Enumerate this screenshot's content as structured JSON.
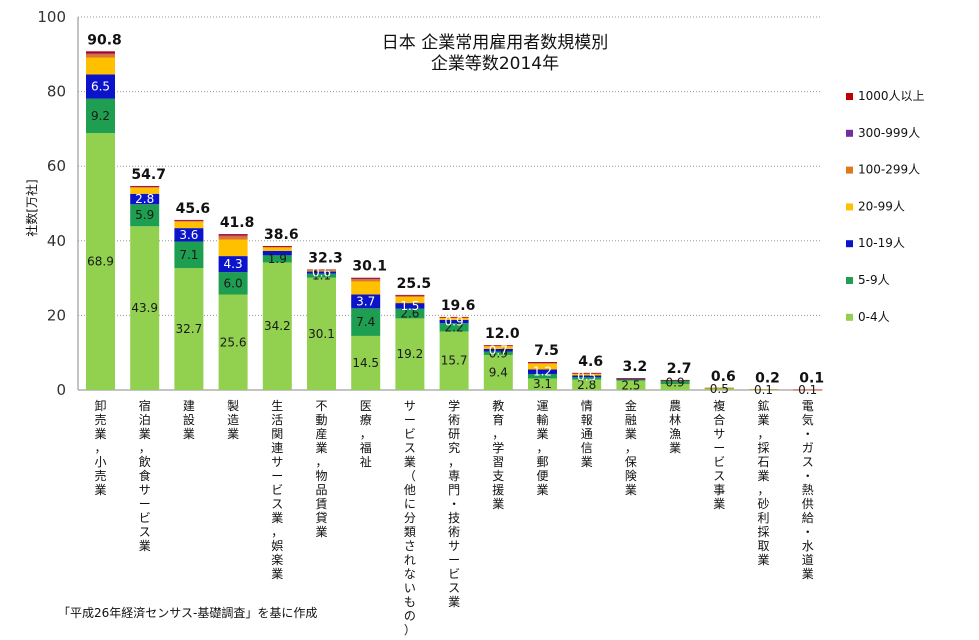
{
  "chart_data": {
    "type": "bar",
    "stacked": true,
    "title": [
      "日本 企業常用雇用者数規模別",
      "企業等数2014年"
    ],
    "ylabel": "社数[万社]",
    "ylim": [
      0,
      100
    ],
    "yticks": [
      0,
      20,
      40,
      60,
      80,
      100
    ],
    "grid": "horizontal-dotted",
    "legend_placement": "right",
    "categories": [
      "卸売業，小売業",
      "宿泊業，飲食サービス業",
      "建設業",
      "製造業",
      "生活関連サービス業，娯楽業",
      "不動産業，物品賃貸業",
      "医療，福祉",
      "サービス業（他に分類されないもの）",
      "学術研究，専門・技術サービス業",
      "教育，学習支援業",
      "運輸業，郵便業",
      "情報通信業",
      "金融業，保険業",
      "農林漁業",
      "複合サービス事業",
      "鉱業，採石業，砂利採取業",
      "電気・ガス・熱供給・水道業"
    ],
    "totals": [
      "90.8",
      "54.7",
      "45.6",
      "41.8",
      "38.6",
      "32.3",
      "30.1",
      "25.5",
      "19.6",
      "12.0",
      "7.5",
      "4.6",
      "3.2",
      "2.7",
      "0.6",
      "0.2",
      "0.1"
    ],
    "series": [
      {
        "name": "0-4人",
        "color": "#92D050",
        "values": [
          68.9,
          43.9,
          32.7,
          25.6,
          34.2,
          30.1,
          14.5,
          19.2,
          15.7,
          9.4,
          3.1,
          2.8,
          2.5,
          1.6,
          0.5,
          0.1,
          0.05
        ],
        "labels": [
          "68.9",
          "43.9",
          "32.7",
          "25.6",
          "34.2",
          "30.1",
          "14.5",
          "19.2",
          "15.7",
          "9.4",
          "3.1",
          "2.8",
          "2.5",
          "",
          "0.5",
          "0.1",
          "0.1"
        ]
      },
      {
        "name": "5-9人",
        "color": "#1E9E50",
        "values": [
          9.2,
          5.9,
          7.1,
          6.0,
          1.9,
          1.1,
          7.4,
          2.6,
          2.2,
          0.9,
          1.2,
          0.6,
          0.3,
          0.9,
          0.05,
          0.05,
          0.02
        ],
        "labels": [
          "9.2",
          "5.9",
          "7.1",
          "6.0",
          "1.9",
          "1.1",
          "7.4",
          "2.6",
          "2.2",
          "0.9",
          "",
          "",
          "",
          "0.9",
          "",
          "",
          ""
        ]
      },
      {
        "name": "10-19人",
        "color": "#0B14C8",
        "values": [
          6.5,
          2.8,
          3.6,
          4.3,
          1.2,
          0.6,
          3.7,
          1.5,
          0.9,
          0.7,
          1.2,
          0.5,
          0.2,
          0.1,
          0.02,
          0.03,
          0.02
        ],
        "labels": [
          "6.5",
          "2.8",
          "3.6",
          "4.3",
          "",
          "0.6",
          "3.7",
          "1.5",
          "0.9",
          "0.7",
          "1.2",
          "0.5",
          "",
          "",
          "",
          "",
          ""
        ]
      },
      {
        "name": "20-99人",
        "color": "#FFC000",
        "values": [
          4.5,
          1.6,
          1.7,
          4.4,
          0.9,
          0.4,
          3.5,
          1.6,
          0.6,
          0.7,
          1.5,
          0.5,
          0.15,
          0.08,
          0.02,
          0.02,
          0.01
        ],
        "labels": []
      },
      {
        "name": "100-299人",
        "color": "#E07820",
        "values": [
          0.9,
          0.3,
          0.3,
          0.9,
          0.2,
          0.05,
          0.6,
          0.4,
          0.1,
          0.2,
          0.3,
          0.1,
          0.03,
          0.01,
          0.005,
          0.0,
          0.0
        ],
        "labels": []
      },
      {
        "name": "300-999人",
        "color": "#7030A0",
        "values": [
          0.3,
          0.1,
          0.1,
          0.3,
          0.1,
          0.02,
          0.2,
          0.1,
          0.05,
          0.05,
          0.1,
          0.05,
          0.01,
          0.0,
          0.0,
          0.0,
          0.0
        ],
        "labels": []
      },
      {
        "name": "1000人以上",
        "color": "#C00000",
        "values": [
          0.5,
          0.1,
          0.1,
          0.3,
          0.1,
          0.03,
          0.2,
          0.1,
          0.05,
          0.05,
          0.1,
          0.05,
          0.01,
          0.01,
          0.0,
          0.0,
          0.01
        ],
        "labels": []
      }
    ]
  },
  "footer": {
    "source": "「平成26年経済センサス-基礎調査」を基に作成"
  }
}
